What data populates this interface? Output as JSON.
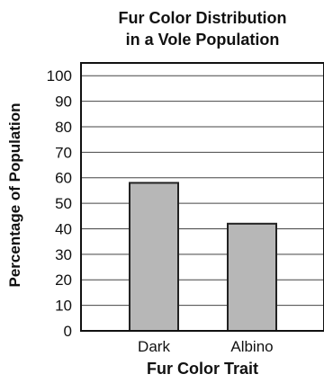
{
  "chart_data": {
    "type": "bar",
    "title": [
      "Fur Color Distribution",
      "in a Vole Population"
    ],
    "xlabel": "Fur Color Trait",
    "ylabel": "Percentage of Population",
    "categories": [
      "Dark",
      "Albino"
    ],
    "values": [
      58,
      42
    ],
    "ylim": [
      0,
      105
    ],
    "yticks": [
      "0",
      "10",
      "20",
      "30",
      "40",
      "50",
      "60",
      "70",
      "80",
      "90",
      "100"
    ],
    "grid": true,
    "legend": "none",
    "colors": {
      "bar_fill": "#b7b7b7",
      "bar_stroke": "#222222",
      "grid": "#444444",
      "axis": "#111111",
      "text": "#111111"
    }
  }
}
